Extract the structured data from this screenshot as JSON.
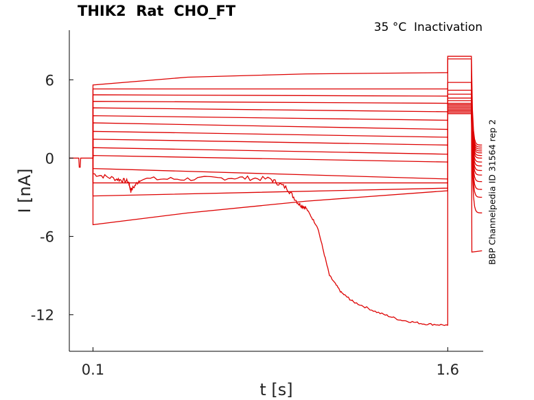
{
  "chart_data": {
    "type": "line",
    "title": "THIK2  Rat  CHO_FT",
    "subtitle": "35 °C  Inactivation",
    "side_label": "BBP Channelpedia ID 31564 rep 2",
    "xlabel": "t [s]",
    "ylabel": "I [nA]",
    "xlim": [
      0.0,
      1.75
    ],
    "ylim": [
      -14.8,
      9.8
    ],
    "xticks": [
      0.1,
      1.6
    ],
    "xtick_labels": [
      "0.1",
      "1.6"
    ],
    "yticks": [
      6,
      0,
      -6,
      -12
    ],
    "ytick_labels": [
      "6",
      "0",
      "-6",
      "-12"
    ],
    "grid": false,
    "line_color": "#dd0000",
    "prepulse_step_time": [
      0.1,
      1.6
    ],
    "series": [
      {
        "values": [
          {
            "t": 0.1,
            "i": 5.6
          },
          {
            "t": 0.5,
            "i": 6.2
          },
          {
            "t": 1.0,
            "i": 6.45
          },
          {
            "t": 1.6,
            "i": 6.55
          }
        ],
        "tail_peak": 7.8,
        "tail_end": 1.0
      },
      {
        "values": [
          {
            "t": 0.1,
            "i": 5.3
          },
          {
            "t": 1.6,
            "i": 5.3
          }
        ],
        "tail_peak": 5.8,
        "tail_end": 0.85
      },
      {
        "values": [
          {
            "t": 0.1,
            "i": 4.85
          },
          {
            "t": 1.6,
            "i": 4.75
          }
        ],
        "tail_peak": 5.2,
        "tail_end": 0.7
      },
      {
        "values": [
          {
            "t": 0.1,
            "i": 4.35
          },
          {
            "t": 1.6,
            "i": 4.2
          }
        ],
        "tail_peak": 4.9,
        "tail_end": 0.55
      },
      {
        "values": [
          {
            "t": 0.1,
            "i": 3.85
          },
          {
            "t": 1.6,
            "i": 3.55
          }
        ],
        "tail_peak": 4.6,
        "tail_end": 0.4
      },
      {
        "values": [
          {
            "t": 0.1,
            "i": 3.25
          },
          {
            "t": 1.6,
            "i": 2.9
          }
        ],
        "tail_peak": 4.4,
        "tail_end": 0.2
      },
      {
        "values": [
          {
            "t": 0.1,
            "i": 2.7
          },
          {
            "t": 1.6,
            "i": 2.2
          }
        ],
        "tail_peak": 4.2,
        "tail_end": 0.0
      },
      {
        "values": [
          {
            "t": 0.1,
            "i": 2.05
          },
          {
            "t": 1.6,
            "i": 1.6
          }
        ],
        "tail_peak": 4.1,
        "tail_end": -0.3
      },
      {
        "values": [
          {
            "t": 0.1,
            "i": 1.45
          },
          {
            "t": 1.6,
            "i": 1.0
          }
        ],
        "tail_peak": 4.0,
        "tail_end": -0.6
      },
      {
        "values": [
          {
            "t": 0.1,
            "i": 0.8
          },
          {
            "t": 1.6,
            "i": 0.3
          }
        ],
        "tail_peak": 3.9,
        "tail_end": -0.95
      },
      {
        "values": [
          {
            "t": 0.1,
            "i": 0.2
          },
          {
            "t": 1.6,
            "i": -0.3
          }
        ],
        "tail_peak": 3.8,
        "tail_end": -1.3
      },
      {
        "values": [
          {
            "t": 0.1,
            "i": -0.8
          },
          {
            "t": 1.6,
            "i": -1.6
          }
        ],
        "tail_peak": 3.7,
        "tail_end": -1.8
      },
      {
        "values": [
          {
            "t": 0.1,
            "i": -1.9
          },
          {
            "t": 0.6,
            "i": -1.9
          },
          {
            "t": 1.6,
            "i": -1.9
          }
        ],
        "tail_peak": 3.6,
        "tail_end": -2.4
      },
      {
        "values": [
          {
            "t": 0.1,
            "i": -2.9
          },
          {
            "t": 1.6,
            "i": -2.3
          }
        ],
        "tail_peak": 3.5,
        "tail_end": -3.0
      },
      {
        "values": [
          {
            "t": 0.1,
            "i": -5.1
          },
          {
            "t": 0.5,
            "i": -4.2
          },
          {
            "t": 1.0,
            "i": -3.3
          },
          {
            "t": 1.6,
            "i": -2.5
          }
        ],
        "tail_peak": 3.4,
        "tail_end": -4.2
      }
    ],
    "noisy_trace": [
      {
        "t": 0.1,
        "i": -1.2
      },
      {
        "t": 0.2,
        "i": -1.6
      },
      {
        "t": 0.25,
        "i": -1.8
      },
      {
        "t": 0.26,
        "i": -2.5
      },
      {
        "t": 0.3,
        "i": -1.6
      },
      {
        "t": 0.5,
        "i": -1.6
      },
      {
        "t": 0.7,
        "i": -1.5
      },
      {
        "t": 0.85,
        "i": -1.6
      },
      {
        "t": 0.92,
        "i": -2.3
      },
      {
        "t": 0.97,
        "i": -3.5
      },
      {
        "t": 1.0,
        "i": -3.8
      },
      {
        "t": 1.05,
        "i": -5.3
      },
      {
        "t": 1.1,
        "i": -9.0
      },
      {
        "t": 1.15,
        "i": -10.3
      },
      {
        "t": 1.2,
        "i": -11.0
      },
      {
        "t": 1.3,
        "i": -11.8
      },
      {
        "t": 1.4,
        "i": -12.4
      },
      {
        "t": 1.5,
        "i": -12.7
      },
      {
        "t": 1.6,
        "i": -12.8
      }
    ],
    "noisy_tail": {
      "peak": 7.6,
      "end": -7.2
    }
  }
}
